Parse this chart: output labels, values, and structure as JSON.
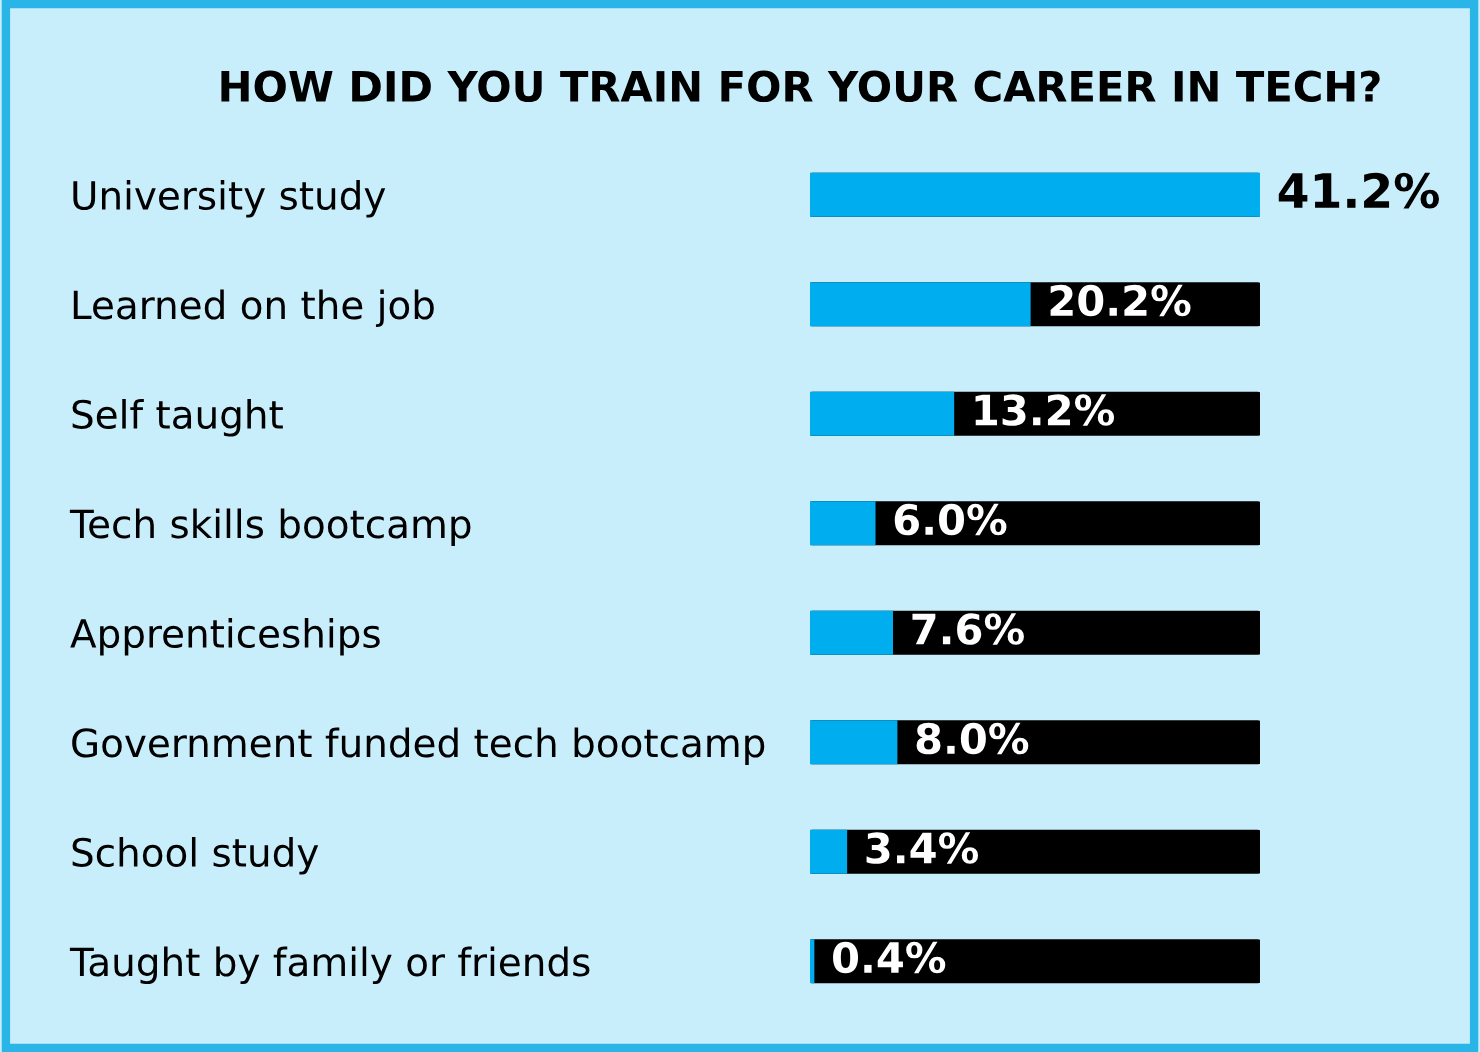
{
  "chart_data": {
    "type": "bar",
    "orientation": "horizontal",
    "title": "HOW DID YOU TRAIN FOR YOUR CAREER IN TECH?",
    "categories": [
      "University study",
      "Learned on the job",
      "Self taught",
      "Tech skills bootcamp",
      "Apprenticeships",
      "Government funded tech bootcamp",
      "School study",
      "Taught by family or friends"
    ],
    "values": [
      41.2,
      20.2,
      13.2,
      6.0,
      7.6,
      8.0,
      3.4,
      0.4
    ],
    "value_labels": [
      "41.2%",
      "20.2%",
      "13.2%",
      "6.0%",
      "7.6%",
      "8.0%",
      "3.4%",
      "0.4%"
    ],
    "color": "#00aeef",
    "tick_labels": "y",
    "grid": false,
    "legend": false
  }
}
